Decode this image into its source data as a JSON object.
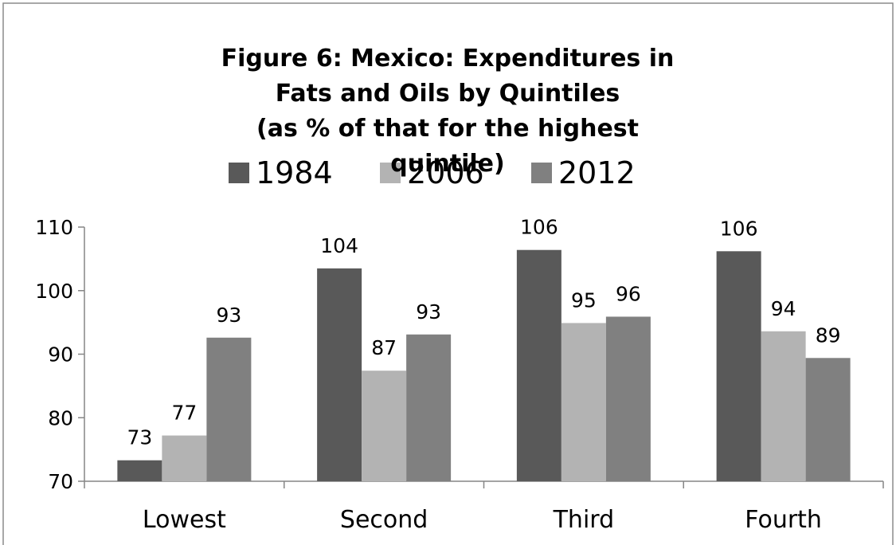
{
  "chart_data": {
    "type": "bar",
    "title": "Figure 6: Mexico: Expenditures in Fats and Oils by Quintiles",
    "subtitle": "(as % of that for the highest quintile)",
    "categories": [
      "Lowest",
      "Second",
      "Third",
      "Fourth"
    ],
    "series": [
      {
        "name": "1984",
        "color": "#595959",
        "values": [
          73.3,
          103.5,
          106.4,
          106.2
        ],
        "value_labels": [
          "73",
          "104",
          "106",
          "106"
        ]
      },
      {
        "name": "2006",
        "color": "#b3b3b3",
        "values": [
          77.2,
          87.4,
          94.9,
          93.6
        ],
        "value_labels": [
          "77",
          "87",
          "95",
          "94"
        ]
      },
      {
        "name": "2012",
        "color": "#808080",
        "values": [
          92.6,
          93.1,
          95.9,
          89.4
        ],
        "value_labels": [
          "93",
          "93",
          "96",
          "89"
        ]
      }
    ],
    "ylim": [
      70,
      110
    ],
    "yticks": [
      70,
      80,
      90,
      100,
      110
    ],
    "grid": false,
    "legend": "top"
  }
}
